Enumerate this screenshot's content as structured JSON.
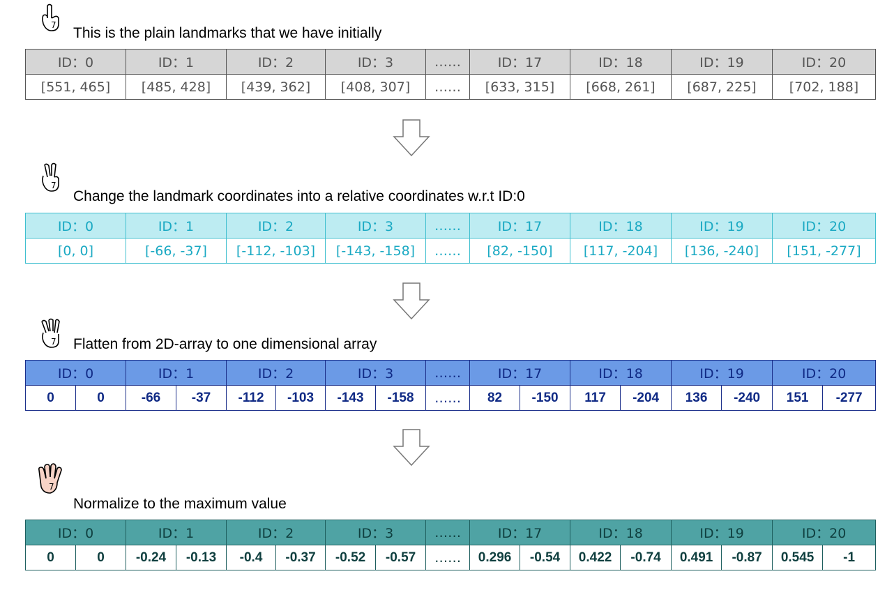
{
  "steps": [
    {
      "title": "This is the plain landmarks that we have initially",
      "hand_icon": "hand-one-finger-icon",
      "header": [
        "ID：0",
        "ID：1",
        "ID：2",
        "ID：3",
        "……",
        "ID：17",
        "ID：18",
        "ID：19",
        "ID：20"
      ],
      "values": [
        "[551, 465]",
        "[485, 428]",
        "[439, 362]",
        "[408, 307]",
        "……",
        "[633, 315]",
        "[668, 261]",
        "[687, 225]",
        "[702, 188]"
      ]
    },
    {
      "title": "Change the landmark coordinates into a relative coordinates w.r.t ID:0",
      "hand_icon": "hand-two-fingers-icon",
      "header": [
        "ID：0",
        "ID：1",
        "ID：2",
        "ID：3",
        "……",
        "ID：17",
        "ID：18",
        "ID：19",
        "ID：20"
      ],
      "values": [
        "[0, 0]",
        "[-66, -37]",
        "[-112, -103]",
        "[-143, -158]",
        "……",
        "[82, -150]",
        "[117, -204]",
        "[136, -240]",
        "[151, -277]"
      ]
    },
    {
      "title": "Flatten from 2D-array to one dimensional array",
      "hand_icon": "hand-three-fingers-icon",
      "header": [
        "ID：0",
        "ID：1",
        "ID：2",
        "ID：3",
        "……",
        "ID：17",
        "ID：18",
        "ID：19",
        "ID：20"
      ],
      "values": [
        "0",
        "0",
        "-66",
        "-37",
        "-112",
        "-103",
        "-143",
        "-158",
        "……",
        "82",
        "-150",
        "117",
        "-204",
        "136",
        "-240",
        "151",
        "-277"
      ]
    },
    {
      "title": "Normalize to the maximum value",
      "hand_icon": "hand-four-fingers-icon",
      "header": [
        "ID：0",
        "ID：1",
        "ID：2",
        "ID：3",
        "……",
        "ID：17",
        "ID：18",
        "ID：19",
        "ID：20"
      ],
      "values": [
        "0",
        "0",
        "-0.24",
        "-0.13",
        "-0.4",
        "-0.37",
        "-0.52",
        "-0.57",
        "……",
        "0.296",
        "-0.54",
        "0.422",
        "-0.74",
        "0.491",
        "-0.87",
        "0.545",
        "-1"
      ]
    }
  ],
  "colors": {
    "step1_header": "#d6d6d6",
    "step2_header": "#bdecf2",
    "step3_header": "#6b9ae6",
    "step4_header": "#4fa3a4",
    "hand4_fill": "#f8d3c6"
  }
}
